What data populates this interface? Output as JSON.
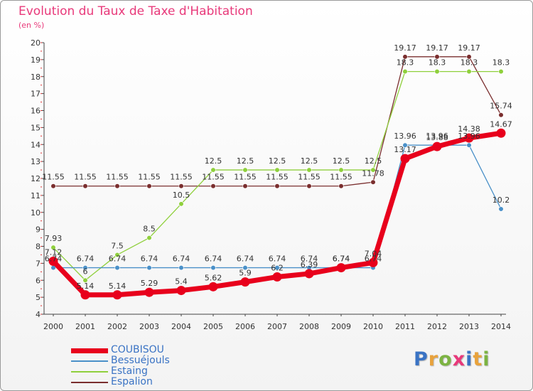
{
  "title": "Evolution du Taux de Taxe d'Habitation",
  "unit_label": "(en %)",
  "logo": {
    "text": "Proxiti",
    "colors": [
      "#3a73c4",
      "#e8a23c",
      "#7cb342",
      "#e8397a",
      "#3a73c4",
      "#e8a23c",
      "#7cb342"
    ]
  },
  "chart_data": {
    "type": "line",
    "x": [
      "2000",
      "2001",
      "2002",
      "2003",
      "2004",
      "2005",
      "2006",
      "2007",
      "2008",
      "2009",
      "2010",
      "2011",
      "2012",
      "2013",
      "2014"
    ],
    "y_ticks": [
      "4",
      "5",
      "6",
      "7",
      "8",
      "9",
      "10",
      "11",
      "12",
      "13",
      "14",
      "15",
      "16",
      "17",
      "18",
      "19",
      "20"
    ],
    "ylim": [
      4,
      20
    ],
    "grid": false,
    "legend_position": "bottom-left",
    "series": [
      {
        "name": "COUBISOU",
        "color": "#e8001c",
        "values": [
          7.12,
          5.14,
          5.14,
          5.29,
          5.4,
          5.62,
          5.9,
          6.2,
          6.39,
          6.74,
          7.04,
          13.17,
          13.88,
          14.38,
          14.67
        ],
        "labels": [
          "7.12",
          "5.14",
          "5.14",
          "5.29",
          "5.4",
          "5.62",
          "5.9",
          "6.2",
          "6.39",
          "6.74",
          "7.04",
          "13.17",
          "13.88",
          "14.38",
          "14.67"
        ]
      },
      {
        "name": "Bessuéjouls",
        "color": "#4a90c8",
        "values": [
          6.74,
          6.74,
          6.74,
          6.74,
          6.74,
          6.74,
          6.74,
          6.74,
          6.74,
          6.74,
          6.74,
          13.96,
          13.96,
          13.96,
          10.2
        ],
        "labels": [
          "6.74",
          "6.74",
          "6.74",
          "6.74",
          "6.74",
          "6.74",
          "6.74",
          "6.74",
          "6.74",
          "6.74",
          "6.74",
          "13.96",
          "13.96",
          "13.96",
          "10.2"
        ]
      },
      {
        "name": "Estaing",
        "color": "#8fd03c",
        "values": [
          7.93,
          6.0,
          7.5,
          8.5,
          10.5,
          12.5,
          12.5,
          12.5,
          12.5,
          12.5,
          12.5,
          18.3,
          18.3,
          18.3,
          18.3
        ],
        "labels": [
          "7.93",
          "6",
          "7.5",
          "8.5",
          "10.5",
          "12.5",
          "12.5",
          "12.5",
          "12.5",
          "12.5",
          "12.5",
          "18.3",
          "18.3",
          "18.3",
          "18.3"
        ]
      },
      {
        "name": "Espalion",
        "color": "#7a2e2e",
        "values": [
          11.55,
          11.55,
          11.55,
          11.55,
          11.55,
          11.55,
          11.55,
          11.55,
          11.55,
          11.55,
          11.78,
          19.17,
          19.17,
          19.17,
          15.74
        ],
        "labels": [
          "11.55",
          "11.55",
          "11.55",
          "11.55",
          "11.55",
          "11.55",
          "11.55",
          "11.55",
          "11.55",
          "11.55",
          "11.78",
          "19.17",
          "19.17",
          "19.17",
          "15.74"
        ]
      }
    ]
  }
}
